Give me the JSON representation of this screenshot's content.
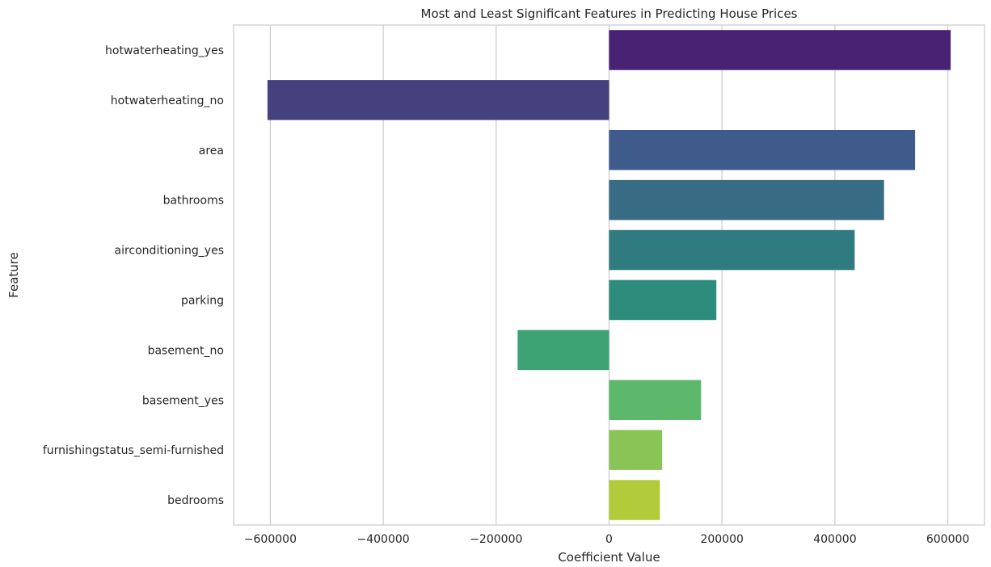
{
  "chart_data": {
    "type": "bar",
    "orientation": "horizontal",
    "title": "Most and Least Significant Features in Predicting House Prices",
    "xlabel": "Coefficient Value",
    "ylabel": "Feature",
    "categories": [
      "hotwaterheating_yes",
      "hotwaterheating_no",
      "area",
      "bathrooms",
      "airconditioning_yes",
      "parking",
      "basement_no",
      "basement_yes",
      "furnishingstatus_semi-furnished",
      "bedrooms"
    ],
    "values": [
      605000,
      -605000,
      542000,
      487000,
      435000,
      190000,
      -162000,
      163000,
      94000,
      90000
    ],
    "colors": [
      "#482374",
      "#45417f",
      "#3e5b8b",
      "#376c84",
      "#2f7b7f",
      "#2d8c7c",
      "#3da274",
      "#5db86c",
      "#8ac356",
      "#b1cb3a"
    ],
    "xlim": [
      -665000,
      665000
    ],
    "xticks": [
      -600000,
      -400000,
      -200000,
      0,
      200000,
      400000,
      600000
    ],
    "xtick_labels": [
      "−600000",
      "−400000",
      "−200000",
      "0",
      "200000",
      "400000",
      "600000"
    ],
    "grid": "x"
  }
}
